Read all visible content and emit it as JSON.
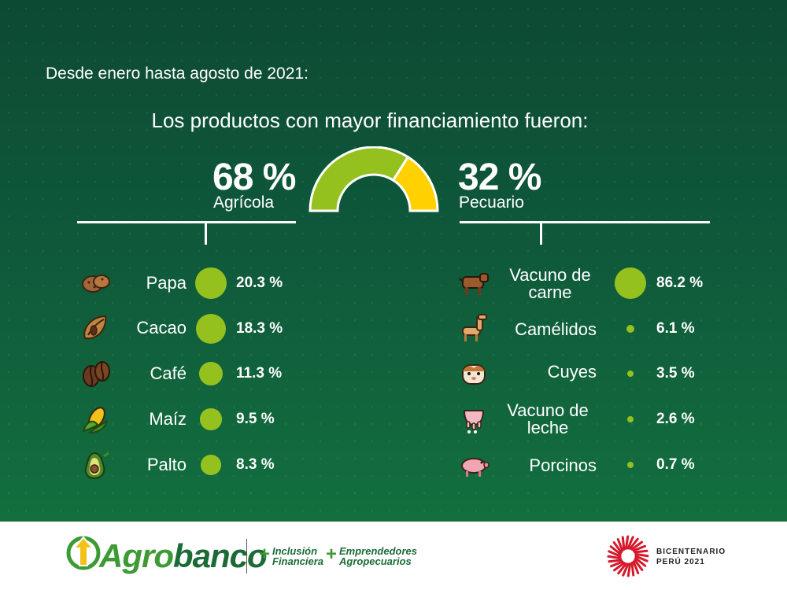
{
  "header": {
    "intro": "Desde enero hasta agosto de 2021:",
    "subtitle": "Los productos con mayor financiamiento fueron:"
  },
  "chart_data": {
    "type": "pie",
    "categories": [
      "Agrícola",
      "Pecuario"
    ],
    "values": [
      68,
      32
    ],
    "value_labels": [
      "68 %",
      "32 %"
    ],
    "colors": [
      "#95c11f",
      "#ffd100"
    ],
    "breakdown": [
      {
        "name": "Agrícola",
        "items": [
          {
            "label": "Papa",
            "value": 20.3,
            "text": "20.3 %",
            "icon": "potato-icon"
          },
          {
            "label": "Cacao",
            "value": 18.3,
            "text": "18.3 %",
            "icon": "cacao-icon"
          },
          {
            "label": "Café",
            "value": 11.3,
            "text": "11.3 %",
            "icon": "coffee-bean-icon"
          },
          {
            "label": "Maíz",
            "value": 9.5,
            "text": "9.5 %",
            "icon": "corn-icon"
          },
          {
            "label": "Palto",
            "value": 8.3,
            "text": "8.3 %",
            "icon": "avocado-icon"
          }
        ]
      },
      {
        "name": "Pecuario",
        "items": [
          {
            "label": "Vacuno de carne",
            "value": 86.2,
            "text": "86.2 %",
            "icon": "cow-icon"
          },
          {
            "label": "Camélidos",
            "value": 6.1,
            "text": "6.1 %",
            "icon": "llama-icon"
          },
          {
            "label": "Cuyes",
            "value": 3.5,
            "text": "3.5 %",
            "icon": "guinea-pig-icon"
          },
          {
            "label": "Vacuno de leche",
            "value": 2.6,
            "text": "2.6 %",
            "icon": "udder-icon"
          },
          {
            "label": "Porcinos",
            "value": 0.7,
            "text": "0.7 %",
            "icon": "pig-icon"
          }
        ]
      }
    ]
  },
  "footer": {
    "logo_part1": "Agro",
    "logo_part2": "banco",
    "tag1_line1": "Inclusión",
    "tag1_line2": "Financiera",
    "tag2_line1": "Emprendedores",
    "tag2_line2": "Agropecuarios",
    "plus": "+",
    "bicentenario_line1": "BICENTENARIO",
    "bicentenario_line2": "PERÚ 2021"
  }
}
